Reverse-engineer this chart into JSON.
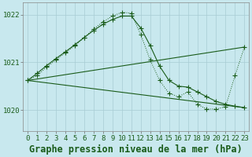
{
  "title": "Graphe pression niveau de la mer (hPa)",
  "background_color": "#c8e8ee",
  "grid_color": "#a8ccd4",
  "line_color": "#1a5c1a",
  "ylim": [
    1019.55,
    1022.25
  ],
  "yticks": [
    1020,
    1021,
    1022
  ],
  "x_ticks": [
    0,
    1,
    2,
    3,
    4,
    5,
    6,
    7,
    8,
    9,
    10,
    11,
    12,
    13,
    14,
    15,
    16,
    17,
    18,
    19,
    20,
    21,
    22,
    23
  ],
  "curve1_x": [
    0,
    1,
    2,
    3,
    4,
    5,
    6,
    7,
    8,
    9,
    10,
    11,
    12,
    13,
    14,
    15,
    16,
    17,
    18,
    19,
    20,
    21,
    22,
    23
  ],
  "curve1_y": [
    1020.62,
    1020.77,
    1020.93,
    1021.08,
    1021.22,
    1021.37,
    1021.52,
    1021.67,
    1021.8,
    1021.9,
    1021.97,
    1021.97,
    1021.72,
    1021.35,
    1020.92,
    1020.62,
    1020.5,
    1020.48,
    1020.38,
    1020.28,
    1020.18,
    1020.12,
    1020.08,
    1020.05
  ],
  "curve2_x": [
    0,
    1,
    2,
    3,
    4,
    5,
    6,
    7,
    8,
    9,
    10,
    11,
    12,
    13,
    14,
    15,
    16,
    17,
    18,
    19,
    20,
    21,
    22,
    23
  ],
  "curve2_y": [
    1020.62,
    1020.72,
    1020.9,
    1021.05,
    1021.2,
    1021.35,
    1021.52,
    1021.7,
    1021.85,
    1021.97,
    1022.05,
    1022.03,
    1021.58,
    1021.05,
    1020.62,
    1020.35,
    1020.28,
    1020.38,
    1020.12,
    1020.02,
    1020.02,
    1020.07,
    1020.72,
    1021.32
  ],
  "line3_x": [
    0,
    23
  ],
  "line3_y": [
    1020.62,
    1021.32
  ],
  "line4_x": [
    0,
    23
  ],
  "line4_y": [
    1020.62,
    1020.05
  ],
  "title_fontsize": 8.5,
  "tick_fontsize": 6.5
}
